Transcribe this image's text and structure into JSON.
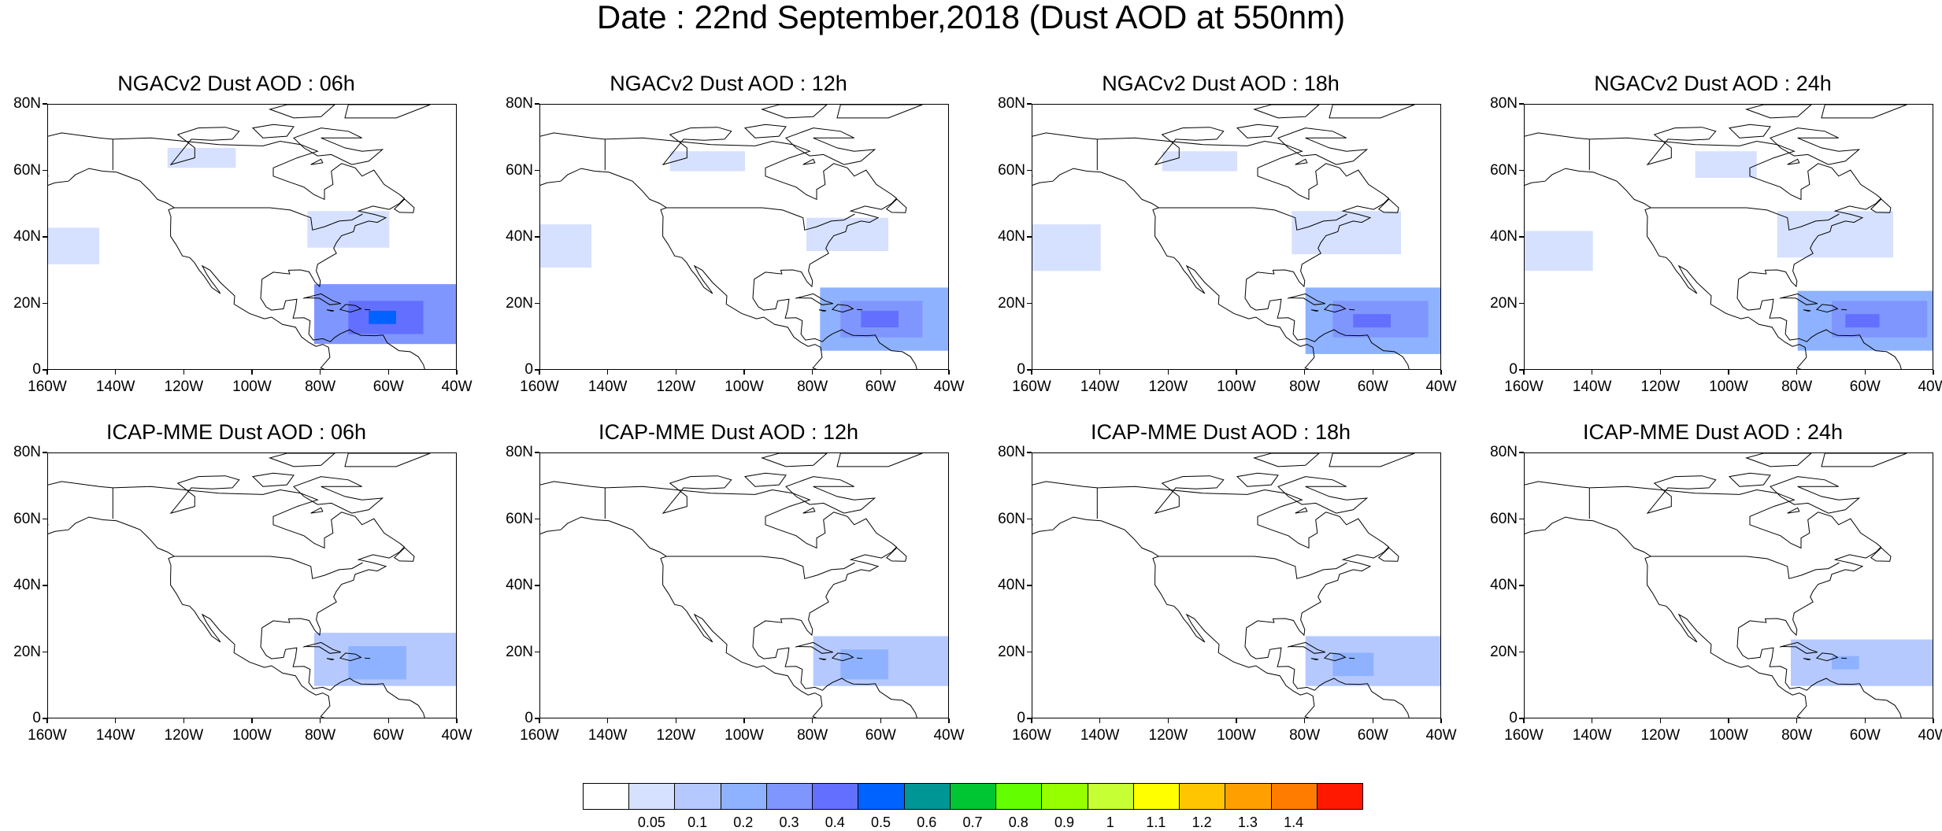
{
  "title": "Date : 22nd September,2018 (Dust AOD at 550nm)",
  "map": {
    "lon_range": [
      -160,
      -40
    ],
    "lat_range": [
      0,
      80
    ],
    "x_ticks": [
      "160W",
      "140W",
      "120W",
      "100W",
      "80W",
      "60W",
      "40W"
    ],
    "y_ticks": [
      "0",
      "20N",
      "40N",
      "60N",
      "80N"
    ],
    "coastline_color": "#000000"
  },
  "panels": [
    {
      "title": "NGACv2 Dust AOD : 06h",
      "plumes": [
        {
          "lon": [
            -82,
            -40
          ],
          "lat": [
            8,
            26
          ],
          "level": 4
        },
        {
          "lon": [
            -72,
            -50
          ],
          "lat": [
            11,
            21
          ],
          "level": 5
        },
        {
          "lon": [
            -66,
            -58
          ],
          "lat": [
            14,
            18
          ],
          "level": 6
        },
        {
          "lon": [
            -84,
            -60
          ],
          "lat": [
            37,
            48
          ],
          "level": 1
        },
        {
          "lon": [
            -160,
            -145
          ],
          "lat": [
            32,
            43
          ],
          "level": 1
        },
        {
          "lon": [
            -125,
            -105
          ],
          "lat": [
            61,
            67
          ],
          "level": 1
        }
      ]
    },
    {
      "title": "NGACv2 Dust AOD : 12h",
      "plumes": [
        {
          "lon": [
            -78,
            -40
          ],
          "lat": [
            6,
            25
          ],
          "level": 3
        },
        {
          "lon": [
            -72,
            -48
          ],
          "lat": [
            10,
            21
          ],
          "level": 4
        },
        {
          "lon": [
            -66,
            -55
          ],
          "lat": [
            13,
            18
          ],
          "level": 5
        },
        {
          "lon": [
            -82,
            -58
          ],
          "lat": [
            36,
            46
          ],
          "level": 1
        },
        {
          "lon": [
            -160,
            -145
          ],
          "lat": [
            31,
            44
          ],
          "level": 1
        },
        {
          "lon": [
            -122,
            -100
          ],
          "lat": [
            60,
            66
          ],
          "level": 1
        }
      ]
    },
    {
      "title": "NGACv2 Dust AOD : 18h",
      "plumes": [
        {
          "lon": [
            -80,
            -40
          ],
          "lat": [
            5,
            25
          ],
          "level": 3
        },
        {
          "lon": [
            -72,
            -44
          ],
          "lat": [
            10,
            21
          ],
          "level": 4
        },
        {
          "lon": [
            -66,
            -55
          ],
          "lat": [
            13,
            17
          ],
          "level": 5
        },
        {
          "lon": [
            -84,
            -52
          ],
          "lat": [
            35,
            48
          ],
          "level": 1
        },
        {
          "lon": [
            -160,
            -140
          ],
          "lat": [
            30,
            44
          ],
          "level": 1
        },
        {
          "lon": [
            -122,
            -100
          ],
          "lat": [
            60,
            66
          ],
          "level": 1
        }
      ]
    },
    {
      "title": "NGACv2 Dust AOD : 24h",
      "plumes": [
        {
          "lon": [
            -80,
            -40
          ],
          "lat": [
            6,
            24
          ],
          "level": 3
        },
        {
          "lon": [
            -70,
            -42
          ],
          "lat": [
            10,
            21
          ],
          "level": 4
        },
        {
          "lon": [
            -66,
            -56
          ],
          "lat": [
            13,
            17
          ],
          "level": 5
        },
        {
          "lon": [
            -86,
            -52
          ],
          "lat": [
            34,
            48
          ],
          "level": 1
        },
        {
          "lon": [
            -160,
            -140
          ],
          "lat": [
            30,
            42
          ],
          "level": 1
        },
        {
          "lon": [
            -110,
            -92
          ],
          "lat": [
            58,
            66
          ],
          "level": 1
        }
      ]
    },
    {
      "title": "ICAP-MME Dust AOD : 06h",
      "plumes": [
        {
          "lon": [
            -82,
            -40
          ],
          "lat": [
            10,
            26
          ],
          "level": 2
        },
        {
          "lon": [
            -72,
            -55
          ],
          "lat": [
            12,
            22
          ],
          "level": 3
        }
      ]
    },
    {
      "title": "ICAP-MME Dust AOD : 12h",
      "plumes": [
        {
          "lon": [
            -80,
            -40
          ],
          "lat": [
            10,
            25
          ],
          "level": 2
        },
        {
          "lon": [
            -72,
            -58
          ],
          "lat": [
            12,
            21
          ],
          "level": 3
        }
      ]
    },
    {
      "title": "ICAP-MME Dust AOD : 18h",
      "plumes": [
        {
          "lon": [
            -80,
            -40
          ],
          "lat": [
            10,
            25
          ],
          "level": 2
        },
        {
          "lon": [
            -72,
            -60
          ],
          "lat": [
            13,
            20
          ],
          "level": 3
        }
      ]
    },
    {
      "title": "ICAP-MME Dust AOD : 24h",
      "plumes": [
        {
          "lon": [
            -82,
            -40
          ],
          "lat": [
            10,
            24
          ],
          "level": 2
        },
        {
          "lon": [
            -76,
            -58
          ],
          "lat": [
            14,
            22
          ],
          "level": 2
        },
        {
          "lon": [
            -70,
            -62
          ],
          "lat": [
            15,
            19
          ],
          "level": 3
        }
      ]
    }
  ],
  "colorbar": {
    "colors": [
      "#ffffff",
      "#d6e1ff",
      "#b5c9ff",
      "#8eb2ff",
      "#7f96ff",
      "#6370ff",
      "#0063ff",
      "#009696",
      "#00c633",
      "#63ff00",
      "#96ff00",
      "#c6ff33",
      "#ffff00",
      "#ffc600",
      "#ffa000",
      "#ff7c00",
      "#ff1900"
    ],
    "labels": [
      "0.05",
      "0.1",
      "0.2",
      "0.3",
      "0.4",
      "0.5",
      "0.6",
      "0.7",
      "0.8",
      "0.9",
      "1",
      "1.1",
      "1.2",
      "1.3",
      "1.4"
    ]
  }
}
